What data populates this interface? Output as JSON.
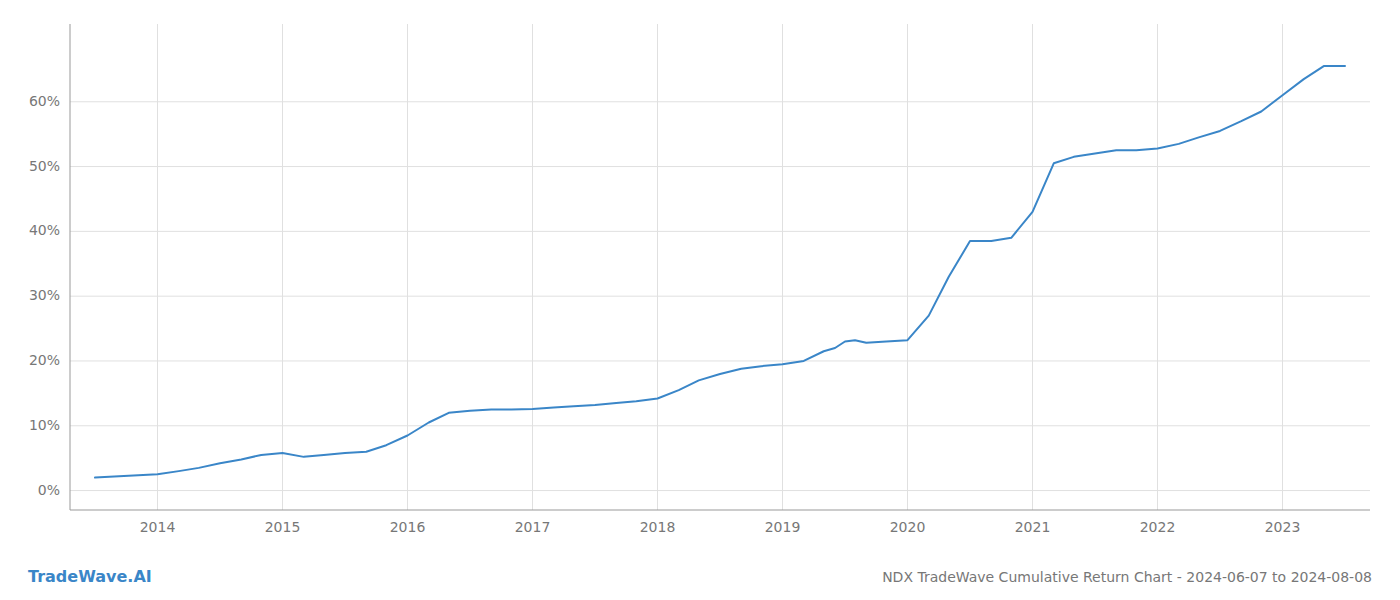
{
  "chart_data": {
    "type": "line",
    "title": "NDX TradeWave Cumulative Return Chart - 2024-06-07 to 2024-08-08",
    "annotations": [
      "TradeWave.AI"
    ],
    "color": "#3a86c8",
    "grid": true,
    "x": [
      2013.5,
      2014.0,
      2014.17,
      2014.33,
      2014.5,
      2014.67,
      2014.83,
      2015.0,
      2015.17,
      2015.33,
      2015.5,
      2015.67,
      2015.83,
      2016.0,
      2016.17,
      2016.33,
      2016.5,
      2016.67,
      2016.83,
      2017.0,
      2017.17,
      2017.33,
      2017.5,
      2017.67,
      2017.83,
      2018.0,
      2018.17,
      2018.33,
      2018.5,
      2018.67,
      2018.83,
      2019.0,
      2019.17,
      2019.33,
      2019.42,
      2019.5,
      2019.58,
      2019.67,
      2019.83,
      2020.0,
      2020.17,
      2020.33,
      2020.5,
      2020.67,
      2020.83,
      2021.0,
      2021.17,
      2021.33,
      2021.5,
      2021.67,
      2021.83,
      2022.0,
      2022.17,
      2022.33,
      2022.5,
      2022.67,
      2022.83,
      2023.0,
      2023.17,
      2023.33,
      2023.5
    ],
    "values": [
      2.0,
      2.5,
      3.0,
      3.5,
      4.2,
      4.8,
      5.5,
      5.8,
      5.2,
      5.5,
      5.8,
      6.0,
      7.0,
      8.5,
      10.5,
      12.0,
      12.3,
      12.5,
      12.5,
      12.6,
      12.8,
      13.0,
      13.2,
      13.5,
      13.8,
      14.2,
      15.5,
      17.0,
      18.0,
      18.8,
      19.2,
      19.5,
      20.0,
      21.5,
      22.0,
      23.0,
      23.2,
      22.8,
      23.0,
      23.2,
      27.0,
      33.0,
      38.5,
      38.5,
      39.0,
      43.0,
      50.5,
      51.5,
      52.0,
      52.5,
      52.5,
      52.8,
      53.5,
      54.5,
      55.5,
      57.0,
      58.5,
      61.0,
      63.5,
      65.5,
      65.5
    ],
    "xlim": [
      2013.3,
      2023.7
    ],
    "ylim": [
      -3,
      72
    ],
    "xticks": [
      2014,
      2015,
      2016,
      2017,
      2018,
      2019,
      2020,
      2021,
      2022,
      2023
    ],
    "yticks": [
      {
        "value": 0,
        "label": "0%"
      },
      {
        "value": 10,
        "label": "10%"
      },
      {
        "value": 20,
        "label": "20%"
      },
      {
        "value": 30,
        "label": "30%"
      },
      {
        "value": 40,
        "label": "40%"
      },
      {
        "value": 50,
        "label": "50%"
      },
      {
        "value": 60,
        "label": "60%"
      }
    ]
  }
}
